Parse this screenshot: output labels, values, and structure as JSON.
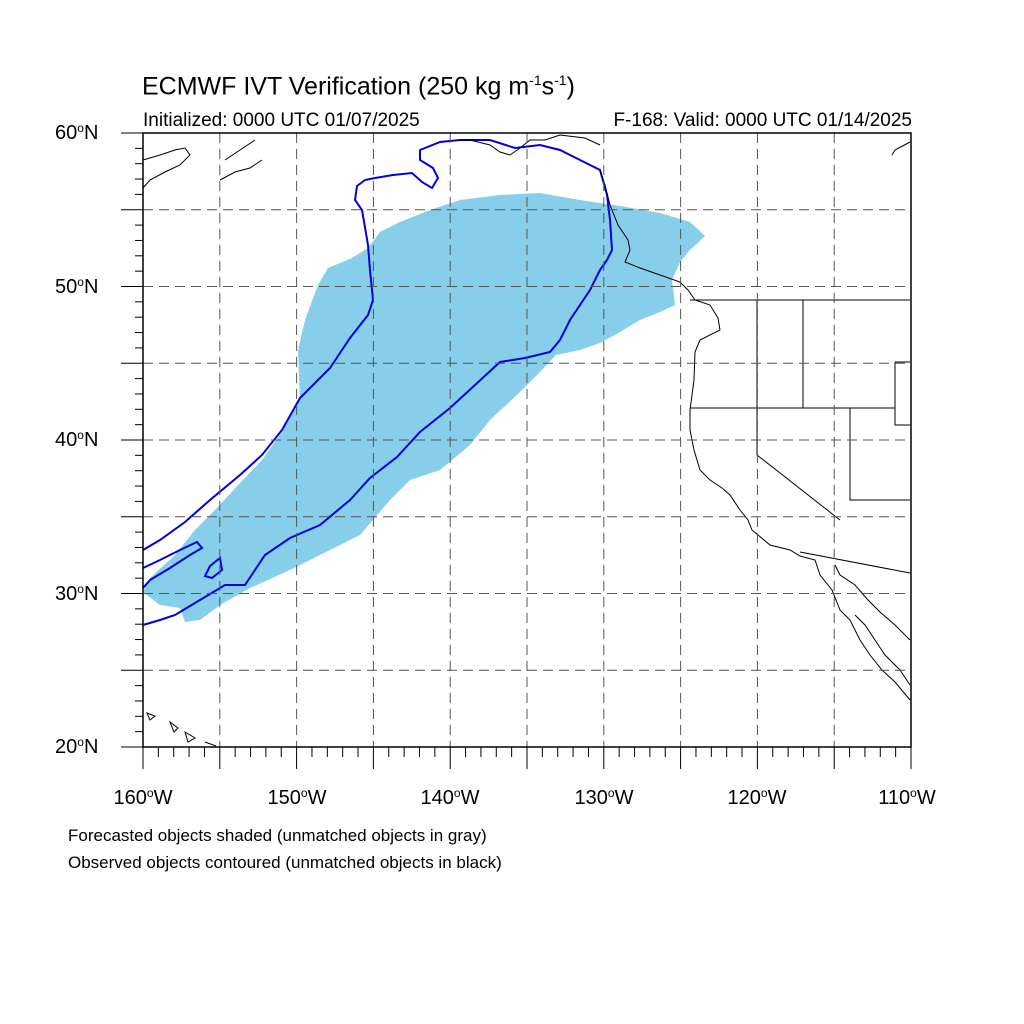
{
  "title": {
    "prefix": "ECMWF IVT Verification (250 kg m",
    "exp1": "-1",
    "mid": "s",
    "exp2": "-1",
    "suffix": ")"
  },
  "subtitle_left": "Initialized: 0000 UTC 01/07/2025",
  "subtitle_right": "F-168: Valid: 0000 UTC 01/14/2025",
  "lat_labels": [
    "60",
    "50",
    "40",
    "30",
    "20"
  ],
  "lat_suffix": "N",
  "lon_labels": [
    "160",
    "150",
    "140",
    "130",
    "120",
    "110"
  ],
  "lon_suffix": "W",
  "footnotes": [
    "Forecasted objects shaded (unmatched objects in gray)",
    "Observed objects contoured (unmatched objects in black)"
  ],
  "colors": {
    "forecast_fill": "#87ceeb",
    "observed_contour": "#0000dd",
    "grid": "#555555",
    "coast": "#000000"
  },
  "map_extent": {
    "lon": [
      -160,
      -110
    ],
    "lat": [
      20,
      60
    ]
  }
}
